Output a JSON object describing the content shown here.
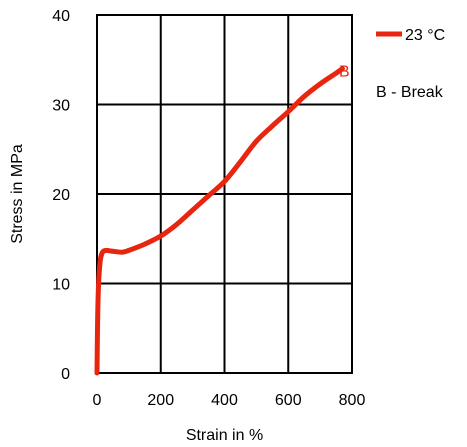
{
  "chart_data": {
    "type": "line",
    "title": "",
    "xlabel": "Strain in %",
    "ylabel": "Stress in MPa",
    "xlim": [
      0,
      800
    ],
    "ylim": [
      0,
      40
    ],
    "xticks": [
      "0",
      "200",
      "400",
      "600",
      "800"
    ],
    "yticks": [
      "0",
      "10",
      "20",
      "30",
      "40"
    ],
    "grid": true,
    "legend_position": "top-right-outside",
    "series": [
      {
        "name": "23 °C",
        "color": "#e8260f",
        "x": [
          0,
          2,
          5,
          10,
          15,
          20,
          30,
          50,
          80,
          100,
          150,
          200,
          250,
          300,
          350,
          400,
          450,
          500,
          550,
          600,
          650,
          700,
          750,
          770
        ],
        "y": [
          0,
          6,
          10,
          12.5,
          13.3,
          13.6,
          13.7,
          13.6,
          13.5,
          13.7,
          14.4,
          15.3,
          16.6,
          18.2,
          19.8,
          21.4,
          23.6,
          25.9,
          27.6,
          29.2,
          30.9,
          32.3,
          33.5,
          34.0
        ]
      }
    ],
    "annotations": [
      {
        "text": "B",
        "x": 778,
        "y": 33.8,
        "color": "#e8260f"
      },
      {
        "text": "B - Break",
        "color": "#000000"
      }
    ]
  }
}
